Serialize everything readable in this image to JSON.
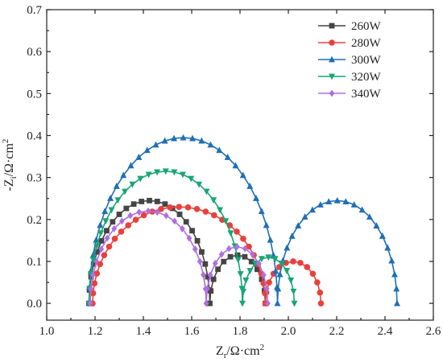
{
  "chart_data": {
    "type": "scatter",
    "xlabel": "Z<sub>r</sub>/Ω·cm²",
    "ylabel": "-Z<sub>i</sub>/Ω·cm²",
    "xlabel_text": "Zr/Ω·cm2",
    "ylabel_text": "-Zi/Ω·cm2",
    "xlim": [
      1.0,
      2.6
    ],
    "ylim": [
      -0.04,
      0.7
    ],
    "x_ticks": [
      1.0,
      1.2,
      1.4,
      1.6,
      1.8,
      2.0,
      2.2,
      2.4,
      2.6
    ],
    "y_ticks": [
      0.0,
      0.1,
      0.2,
      0.3,
      0.4,
      0.5,
      0.6,
      0.7
    ],
    "x_tick_labels": [
      "1.0",
      "1.2",
      "1.4",
      "1.6",
      "1.8",
      "2.0",
      "2.2",
      "2.4",
      "2.6"
    ],
    "y_tick_labels": [
      "0.0",
      "0.1",
      "0.2",
      "0.3",
      "0.4",
      "0.5",
      "0.6",
      "0.7"
    ],
    "grid": false,
    "legend_position": "top-right",
    "series": [
      {
        "name": "260W",
        "color": "#454545",
        "marker": "square",
        "arcs": [
          {
            "x_start": 1.175,
            "x_end": 1.675,
            "peak_y": 0.245,
            "n": 24
          },
          {
            "x_start": 1.675,
            "x_end": 1.905,
            "peak_y": 0.115,
            "n": 12
          }
        ]
      },
      {
        "name": "280W",
        "color": "#e8413c",
        "marker": "circle",
        "arcs": [
          {
            "x_start": 1.19,
            "x_end": 1.905,
            "peak_y": 0.23,
            "n": 30
          },
          {
            "x_start": 1.905,
            "x_end": 2.135,
            "peak_y": 0.1,
            "n": 12
          }
        ]
      },
      {
        "name": "300W",
        "color": "#1f6fb5",
        "marker": "triangle-up",
        "arcs": [
          {
            "x_start": 1.175,
            "x_end": 1.955,
            "peak_y": 0.395,
            "n": 32
          },
          {
            "x_start": 1.955,
            "x_end": 2.45,
            "peak_y": 0.245,
            "n": 22
          }
        ]
      },
      {
        "name": "320W",
        "color": "#17a673",
        "marker": "triangle-down",
        "arcs": [
          {
            "x_start": 1.175,
            "x_end": 1.81,
            "peak_y": 0.315,
            "n": 28
          },
          {
            "x_start": 1.81,
            "x_end": 2.025,
            "peak_y": 0.11,
            "n": 12
          }
        ]
      },
      {
        "name": "340W",
        "color": "#b06fe0",
        "marker": "diamond",
        "arcs": [
          {
            "x_start": 1.18,
            "x_end": 1.66,
            "peak_y": 0.22,
            "n": 20
          },
          {
            "x_start": 1.66,
            "x_end": 1.915,
            "peak_y": 0.135,
            "n": 12
          }
        ],
        "arc_overlap_floor": 0.19
      }
    ]
  }
}
